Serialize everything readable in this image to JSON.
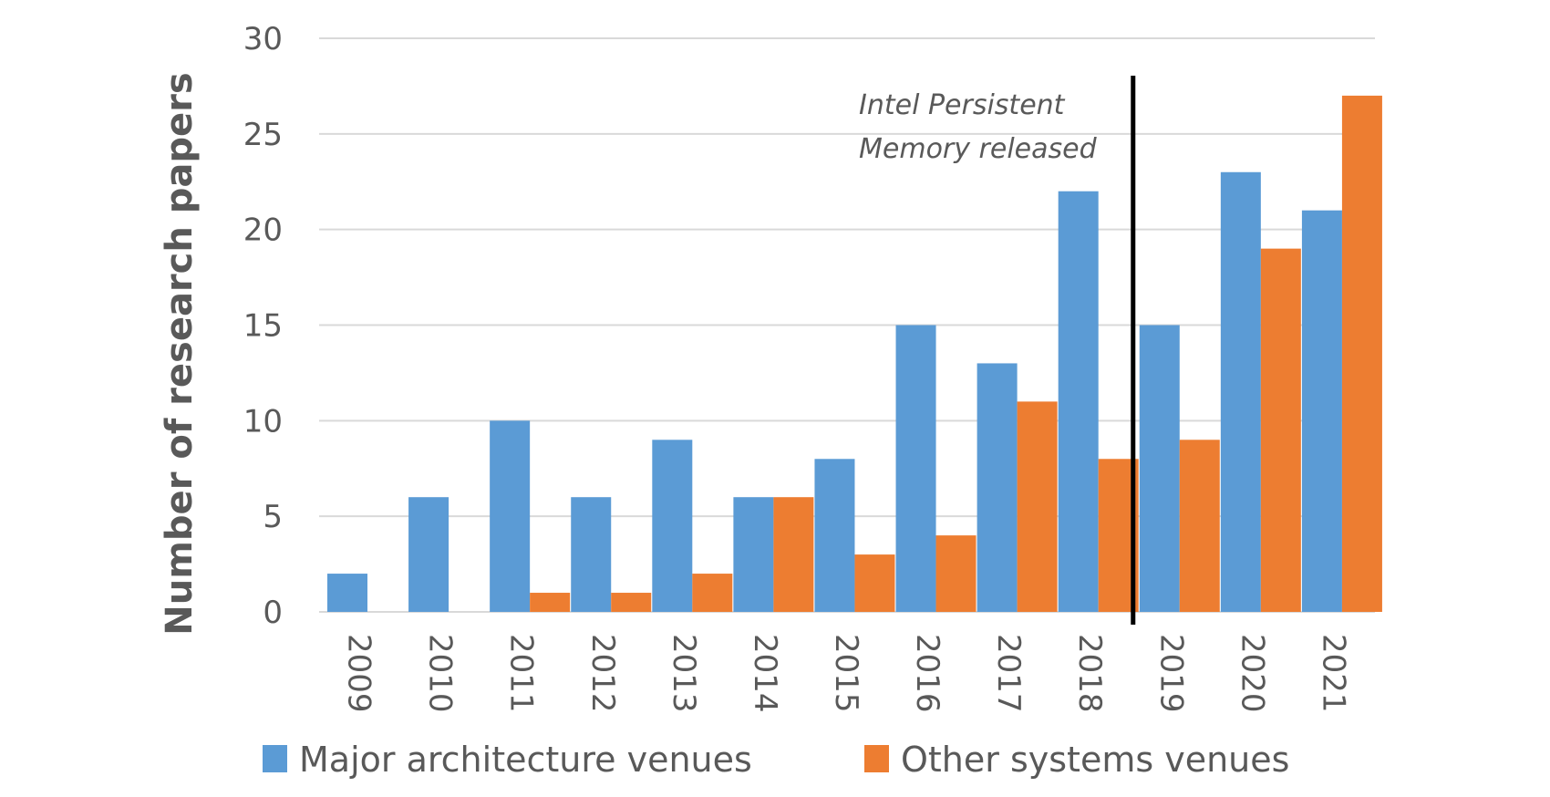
{
  "chart_data": {
    "type": "bar",
    "title": "",
    "xlabel": "",
    "ylabel": "Number of research papers",
    "ylim": [
      0,
      30
    ],
    "yticks": [
      0,
      5,
      10,
      15,
      20,
      25,
      30
    ],
    "ytick_labels": [
      "0",
      "5",
      "10",
      "15",
      "20",
      "25",
      "30"
    ],
    "grid": true,
    "categories": [
      "2009",
      "2010",
      "2011",
      "2012",
      "2013",
      "2014",
      "2015",
      "2016",
      "2017",
      "2018",
      "2019",
      "2020",
      "2021"
    ],
    "series": [
      {
        "name": "Major architecture venues",
        "color": "#5B9BD5",
        "values": [
          2,
          6,
          10,
          6,
          9,
          6,
          8,
          15,
          13,
          22,
          15,
          23,
          21
        ]
      },
      {
        "name": "Other systems venues",
        "color": "#ED7D31",
        "values": [
          0,
          0,
          1,
          1,
          2,
          6,
          3,
          4,
          11,
          8,
          9,
          19,
          27
        ]
      }
    ],
    "annotation": {
      "lines": [
        "Intel Persistent",
        "Memory released"
      ],
      "marker_between": [
        "2018",
        "2019"
      ]
    },
    "legend_position": "bottom"
  }
}
